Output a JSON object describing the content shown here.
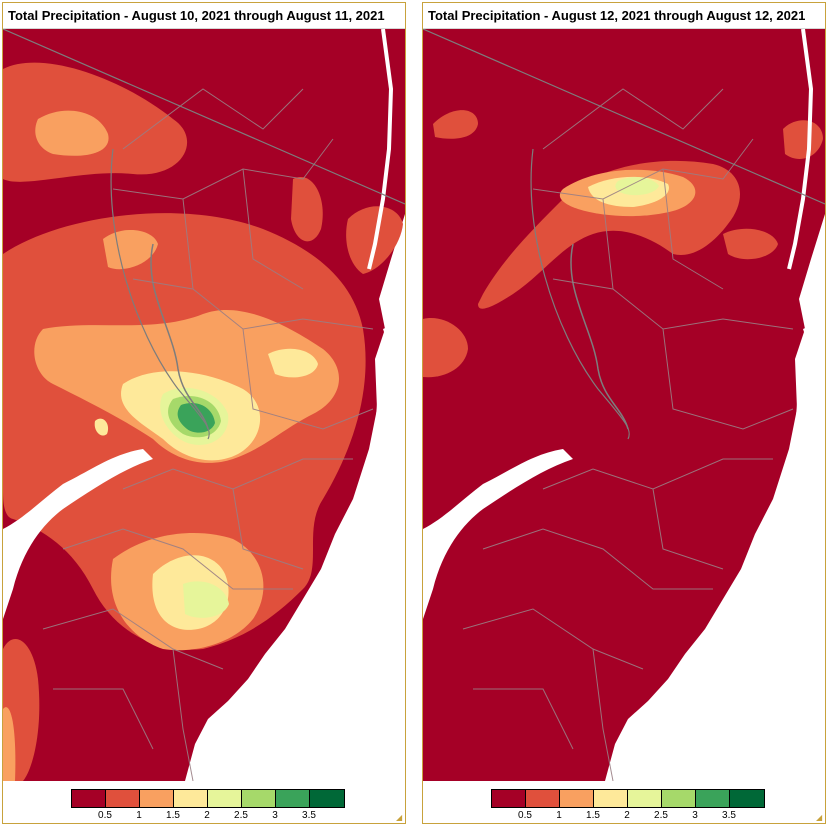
{
  "panels": [
    {
      "title": "Total Precipitation - August 10, 2021 through August 11, 2021",
      "peak_level": "3.5"
    },
    {
      "title": "Total Precipitation - August 12, 2021 through August 12, 2021",
      "peak_level": "2.5"
    }
  ],
  "legend": {
    "ticks": [
      "0.5",
      "1",
      "1.5",
      "2",
      "2.5",
      "3",
      "3.5"
    ],
    "colors": [
      "#a50026",
      "#e0503c",
      "#f9a060",
      "#fee99a",
      "#e6f59a",
      "#a6d96a",
      "#3aa35a",
      "#006837"
    ]
  },
  "map_colors": {
    "background_water": "#ffffff",
    "county_lines": "#9a7e84",
    "state_line": "#7d7d7d",
    "river": "#ffffff"
  }
}
